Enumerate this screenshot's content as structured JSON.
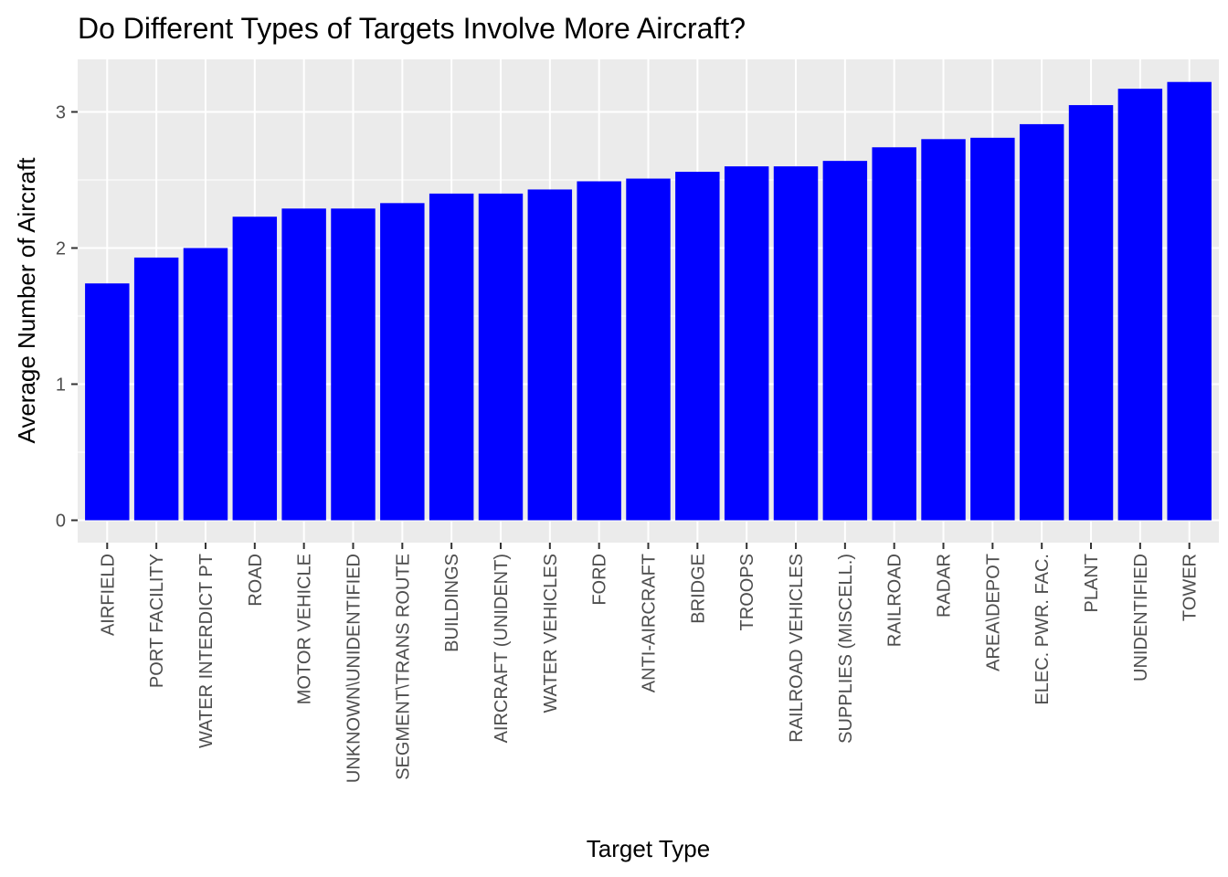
{
  "chart_data": {
    "type": "bar",
    "title": "Do Different Types of Targets Involve More Aircraft?",
    "xlabel": "Target Type",
    "ylabel": "Average Number of Aircraft",
    "ylim": [
      0,
      3.35
    ],
    "yticks": [
      0,
      1,
      2,
      3
    ],
    "grid": true,
    "categories": [
      "AIRFIELD",
      "PORT FACILITY",
      "WATER INTERDICT PT",
      "ROAD",
      "MOTOR VEHICLE",
      "UNKNOWN\\UNIDENTIFIED",
      "SEGMENT\\TRANS ROUTE",
      "BUILDINGS",
      "AIRCRAFT (UNIDENT)",
      "WATER VEHICLES",
      "FORD",
      "ANTI-AIRCRAFT",
      "BRIDGE",
      "TROOPS",
      "RAILROAD VEHICLES",
      "SUPPLIES (MISCELL.)",
      "RAILROAD",
      "RADAR",
      "AREA\\DEPOT",
      "ELEC. PWR. FAC.",
      "PLANT",
      "UNIDENTIFIED",
      "TOWER"
    ],
    "values": [
      1.74,
      1.93,
      2.0,
      2.23,
      2.29,
      2.29,
      2.33,
      2.4,
      2.4,
      2.43,
      2.49,
      2.51,
      2.56,
      2.6,
      2.6,
      2.64,
      2.74,
      2.8,
      2.81,
      2.91,
      3.05,
      3.17,
      3.22
    ],
    "colors": {
      "bar": "#0000ff",
      "panel": "#ebebeb",
      "grid": "#ffffff",
      "tick": "#333333",
      "tick_label": "#4d4d4d",
      "text": "#000000"
    }
  }
}
